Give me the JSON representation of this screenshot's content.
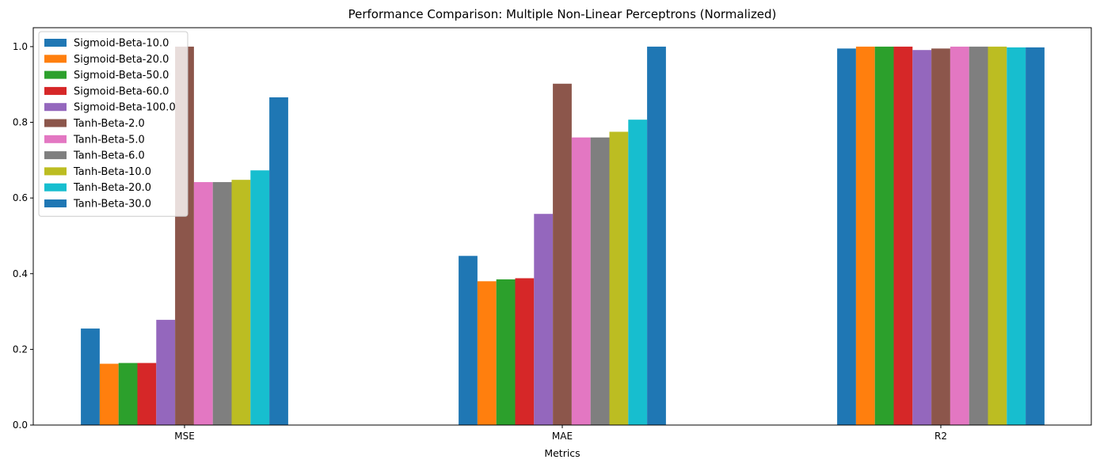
{
  "chart_data": {
    "type": "bar",
    "title": "Performance Comparison: Multiple Non-Linear Perceptrons (Normalized)",
    "xlabel": "Metrics",
    "ylabel": "",
    "categories": [
      "MSE",
      "MAE",
      "R2"
    ],
    "ylim": [
      0,
      1.05
    ],
    "yticks": [
      "0.0",
      "0.2",
      "0.4",
      "0.6",
      "0.8",
      "1.0"
    ],
    "grid": false,
    "legend_position": "top-left",
    "series": [
      {
        "name": "Sigmoid-Beta-10.0",
        "color": "#1f77b4",
        "values": [
          0.255,
          0.447,
          0.995
        ]
      },
      {
        "name": "Sigmoid-Beta-20.0",
        "color": "#ff7f0e",
        "values": [
          0.162,
          0.38,
          1.0
        ]
      },
      {
        "name": "Sigmoid-Beta-50.0",
        "color": "#2ca02c",
        "values": [
          0.164,
          0.385,
          1.0
        ]
      },
      {
        "name": "Sigmoid-Beta-60.0",
        "color": "#d62728",
        "values": [
          0.164,
          0.388,
          1.0
        ]
      },
      {
        "name": "Sigmoid-Beta-100.0",
        "color": "#9467bd",
        "values": [
          0.278,
          0.558,
          0.991
        ]
      },
      {
        "name": "Tanh-Beta-2.0",
        "color": "#8c564b",
        "values": [
          1.0,
          0.902,
          0.995
        ]
      },
      {
        "name": "Tanh-Beta-5.0",
        "color": "#e377c2",
        "values": [
          0.642,
          0.76,
          1.0
        ]
      },
      {
        "name": "Tanh-Beta-6.0",
        "color": "#7f7f7f",
        "values": [
          0.642,
          0.76,
          1.0
        ]
      },
      {
        "name": "Tanh-Beta-10.0",
        "color": "#bcbd22",
        "values": [
          0.648,
          0.775,
          1.0
        ]
      },
      {
        "name": "Tanh-Beta-20.0",
        "color": "#17becf",
        "values": [
          0.673,
          0.807,
          0.998
        ]
      },
      {
        "name": "Tanh-Beta-30.0",
        "color": "#1f77b4",
        "values": [
          0.866,
          1.0,
          0.998
        ]
      }
    ]
  }
}
